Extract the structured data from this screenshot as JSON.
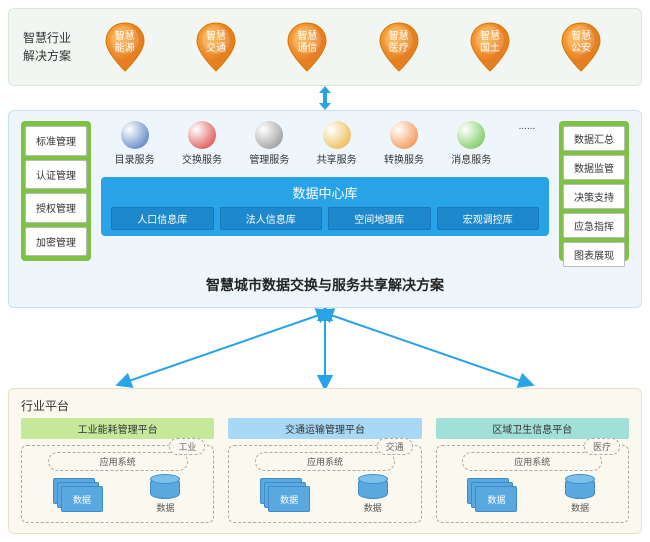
{
  "colors": {
    "orange": "#f39c12",
    "orange_dark": "#e67e22",
    "green": "#7dc242",
    "blue": "#29a3e8",
    "blue_dark": "#1e88cc",
    "panel_top_bg": "#f2f6f2",
    "panel_mid_bg": "#eef6fb",
    "panel_bot_bg": "#fbf8ef",
    "arrow": "#29a3e8"
  },
  "top": {
    "label": "智慧行业解决方案",
    "pins": [
      {
        "l1": "智慧",
        "l2": "能源"
      },
      {
        "l1": "智慧",
        "l2": "交通"
      },
      {
        "l1": "智慧",
        "l2": "通信"
      },
      {
        "l1": "智慧",
        "l2": "医疗"
      },
      {
        "l1": "智慧",
        "l2": "国土"
      },
      {
        "l1": "智慧",
        "l2": "公安"
      }
    ]
  },
  "mid": {
    "left_col": [
      "标准管理",
      "认证管理",
      "授权管理",
      "加密管理"
    ],
    "right_col": [
      "数据汇总",
      "数据监管",
      "决策支持",
      "应急指挥",
      "图表展现"
    ],
    "services": [
      {
        "label": "目录服务",
        "color": "#3d6cb8"
      },
      {
        "label": "交换服务",
        "color": "#d83030"
      },
      {
        "label": "管理服务",
        "color": "#888888"
      },
      {
        "label": "共享服务",
        "color": "#e8b030"
      },
      {
        "label": "转换服务",
        "color": "#f08030"
      },
      {
        "label": "消息服务",
        "color": "#60c040"
      },
      {
        "label": "......",
        "color": "transparent"
      }
    ],
    "dc_title": "数据中心库",
    "dc_items": [
      "人口信息库",
      "法人信息库",
      "空间地理库",
      "宏观调控库"
    ],
    "title": "智慧城市数据交换与服务共享解决方案"
  },
  "bot": {
    "label": "行业平台",
    "platforms": [
      {
        "hdr": "工业能耗管理平台",
        "cls": "g",
        "tag": "工业",
        "app": "应用系统",
        "data": "数据"
      },
      {
        "hdr": "交通运输管理平台",
        "cls": "b",
        "tag": "交通",
        "app": "应用系统",
        "data": "数据"
      },
      {
        "hdr": "区域卫生信息平台",
        "cls": "t",
        "tag": "医疗",
        "app": "应用系统",
        "data": "数据"
      }
    ]
  }
}
